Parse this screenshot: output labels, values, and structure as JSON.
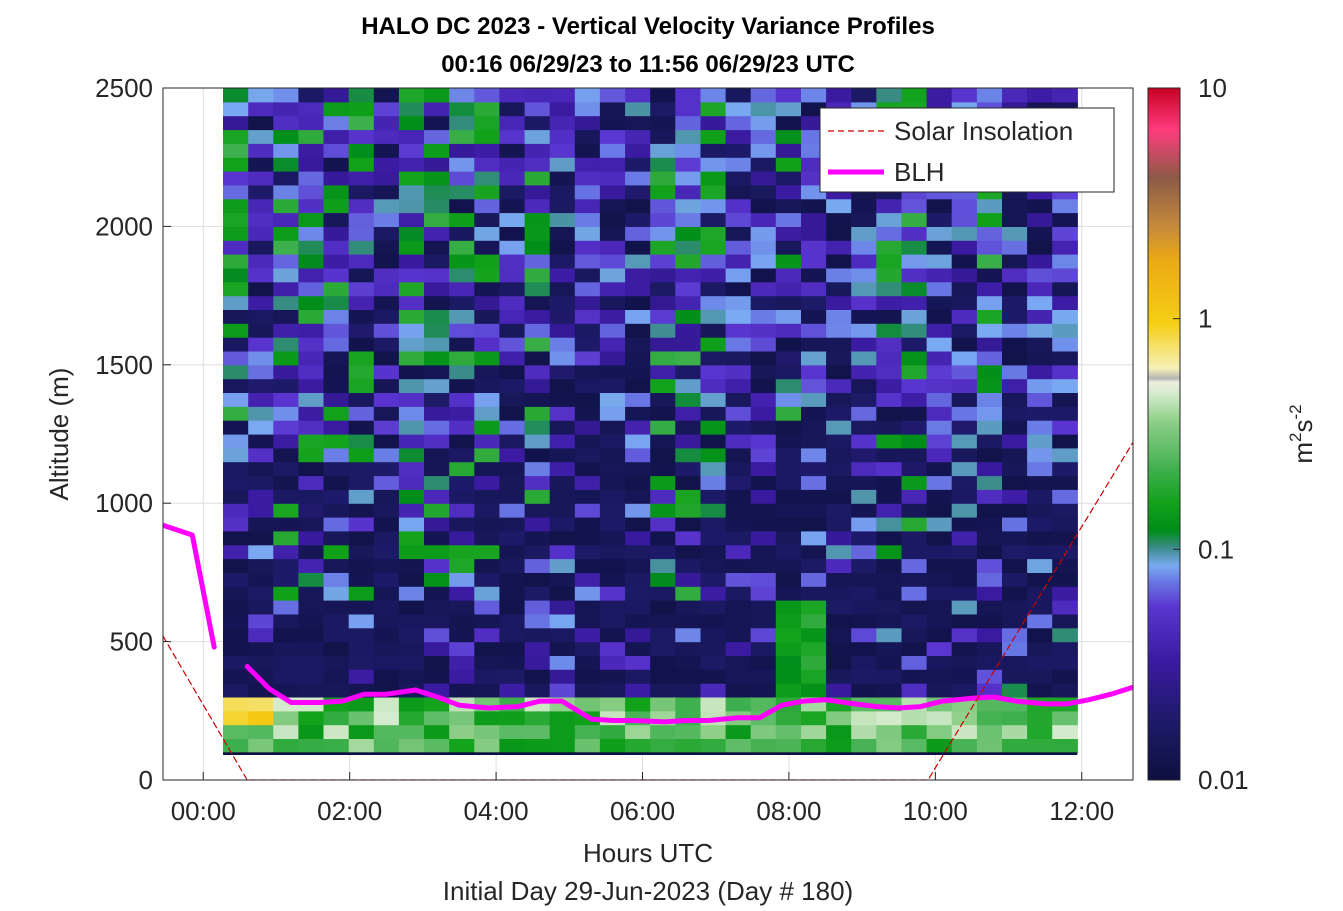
{
  "chart_data": {
    "type": "heatmap",
    "title_line1": "HALO DC 2023 - Vertical Velocity Variance Profiles",
    "title_line2": "00:16 06/29/23 to 11:56 06/29/23  UTC",
    "xlabel": "Hours UTC",
    "xlabel2": "Initial Day 29-Jun-2023 (Day # 180)",
    "ylabel": "Altitude (m)",
    "xlim": [
      -0.55,
      12.7
    ],
    "ylim": [
      0,
      2500
    ],
    "x_ticks": [
      0,
      2,
      4,
      6,
      8,
      10,
      12
    ],
    "x_tick_labels": [
      "00:00",
      "02:00",
      "04:00",
      "06:00",
      "08:00",
      "10:00",
      "12:00"
    ],
    "y_ticks": [
      0,
      500,
      1000,
      1500,
      2000,
      2500
    ],
    "y_tick_labels": [
      "0",
      "500",
      "1000",
      "1500",
      "2000",
      "2500"
    ],
    "grid": true,
    "colorbar": {
      "label": "m²s⁻²",
      "label_base": "m",
      "label_exp1": "2",
      "label_mid": "s",
      "label_exp2": "-2",
      "scale": "log",
      "range": [
        0.01,
        10
      ],
      "ticks": [
        0.01,
        0.1,
        1,
        10
      ],
      "tick_labels": [
        "0.01",
        "0.1",
        "1",
        "10"
      ]
    },
    "legend": {
      "placement": "top-right",
      "entries": [
        {
          "name": "Solar Insolation",
          "style": "dashed",
          "color": "#cc0000"
        },
        {
          "name": "BLH",
          "style": "solid",
          "color": "#ff00ff"
        }
      ]
    },
    "heatmap": {
      "x_start": 0.27,
      "x_end": 11.94,
      "columns": 34,
      "y_start": 100,
      "y_end": 2500,
      "rows": 48,
      "note_lowest_row_dark": true
    },
    "series": [
      {
        "name": "BLH",
        "color": "#ff00ff",
        "x": [
          -0.55,
          -0.15,
          0.15
        ],
        "y": [
          920,
          885,
          480
        ]
      },
      {
        "name": "BLH",
        "color": "#ff00ff",
        "x": [
          0.6,
          0.9,
          1.2,
          1.6,
          1.9,
          2.2,
          2.5,
          2.9,
          3.2,
          3.5,
          3.9,
          4.3,
          4.6,
          4.9,
          5.3,
          5.6,
          5.9,
          6.3,
          6.6,
          6.9,
          7.3,
          7.6,
          7.9,
          8.2,
          8.5,
          8.9,
          9.2,
          9.5,
          9.8,
          10.1,
          10.5,
          10.8,
          11.1,
          11.5,
          11.8,
          12.1,
          12.4,
          12.7
        ],
        "y": [
          410,
          330,
          280,
          280,
          285,
          310,
          310,
          325,
          300,
          270,
          260,
          265,
          285,
          285,
          220,
          215,
          215,
          210,
          215,
          215,
          225,
          225,
          270,
          285,
          290,
          275,
          265,
          260,
          265,
          285,
          295,
          300,
          285,
          275,
          275,
          290,
          310,
          335
        ]
      },
      {
        "name": "Solar Insolation",
        "color": "#cc0000",
        "x": [
          -0.55,
          0.6,
          9.9,
          12.7
        ],
        "y": [
          520,
          0,
          0,
          1220
        ]
      }
    ]
  }
}
